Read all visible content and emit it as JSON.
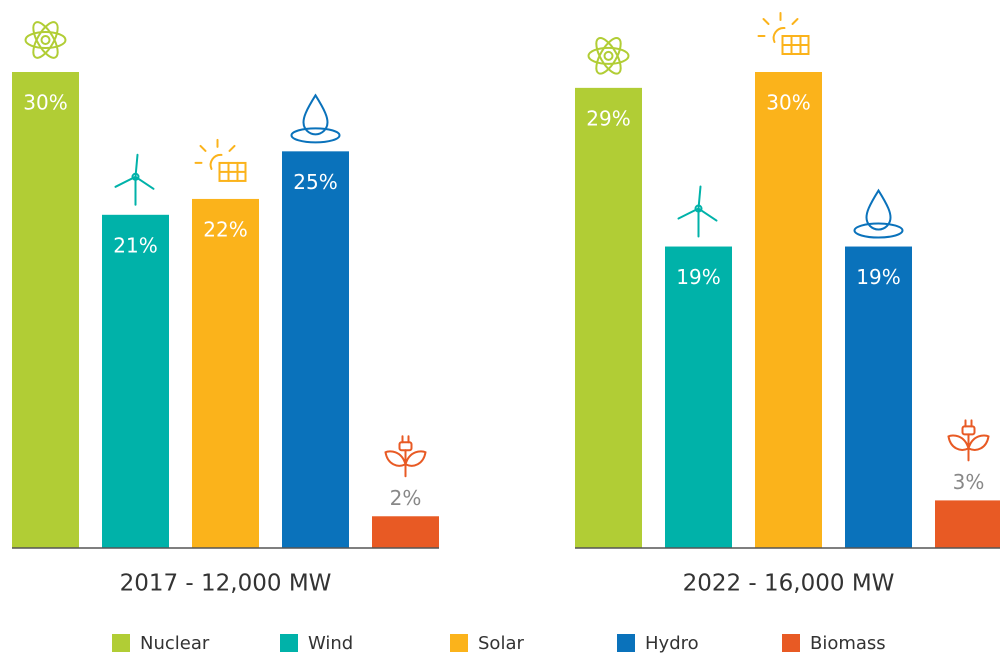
{
  "chart_data": [
    {
      "type": "bar",
      "title": "2017 - 12,000 MW",
      "categories": [
        "Nuclear",
        "Wind",
        "Solar",
        "Hydro",
        "Biomass"
      ],
      "values": [
        30,
        21,
        22,
        25,
        2
      ],
      "value_labels": [
        "30%",
        "21%",
        "22%",
        "25%",
        "2%"
      ],
      "colors": [
        "#b1cd35",
        "#00b2a9",
        "#fbb31b",
        "#0a72bb",
        "#e85a24"
      ],
      "ylim": [
        0,
        30
      ]
    },
    {
      "type": "bar",
      "title": "2022 - 16,000 MW",
      "categories": [
        "Nuclear",
        "Wind",
        "Solar",
        "Hydro",
        "Biomass"
      ],
      "values": [
        29,
        19,
        30,
        19,
        3
      ],
      "value_labels": [
        "29%",
        "19%",
        "30%",
        "19%",
        "3%"
      ],
      "colors": [
        "#b1cd35",
        "#00b2a9",
        "#fbb31b",
        "#0a72bb",
        "#e85a24"
      ],
      "ylim": [
        0,
        30
      ]
    }
  ]
}
